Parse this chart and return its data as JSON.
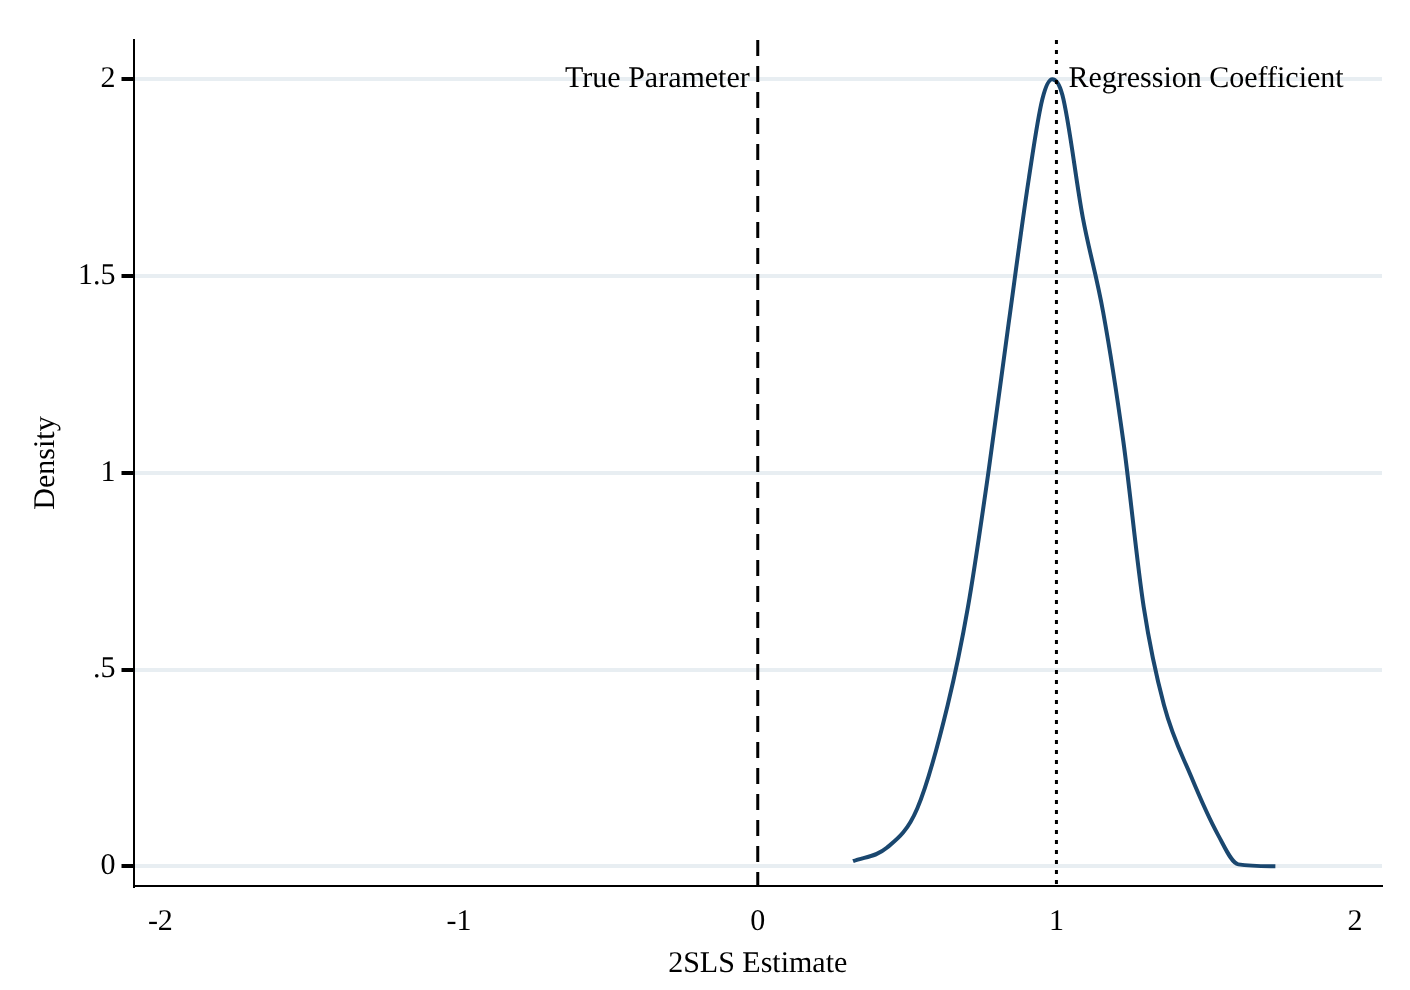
{
  "chart_data": {
    "type": "line",
    "xlabel": "2SLS Estimate",
    "ylabel": "Density",
    "x": [
      0.319,
      0.432,
      0.534,
      0.636,
      0.704,
      0.772,
      0.84,
      0.908,
      0.953,
      0.986,
      1.02,
      1.088,
      1.156,
      1.224,
      1.292,
      1.36,
      1.45,
      1.541,
      1.609,
      1.733
    ],
    "series": [
      {
        "color": "#1a476f",
        "values": [
          0.013,
          0.047,
          0.147,
          0.41,
          0.66,
          1.0,
          1.38,
          1.75,
          1.95,
          2.0,
          1.96,
          1.65,
          1.41,
          1.08,
          0.66,
          0.41,
          0.23,
          0.08,
          0.005,
          0
        ]
      }
    ],
    "xlim": [
      -2.09,
      2.09
    ],
    "xticks": [
      -2,
      -1,
      0,
      1,
      2
    ],
    "ylim": [
      -0.05,
      2.1
    ],
    "yticks": [
      0,
      {
        "value": 0.5,
        "label": ".5"
      },
      1,
      1.5,
      2
    ],
    "ref_lines": [
      {
        "axis": "x",
        "value": 0,
        "label": "True Parameter",
        "line_style": "dashed",
        "color": "#000000"
      },
      {
        "axis": "x",
        "value": 1,
        "label": "Regression Coefficient",
        "line_style": "dotted",
        "color": "#000000"
      }
    ],
    "grid": "y",
    "legend": false,
    "marker": "none",
    "line_style": "solid"
  }
}
